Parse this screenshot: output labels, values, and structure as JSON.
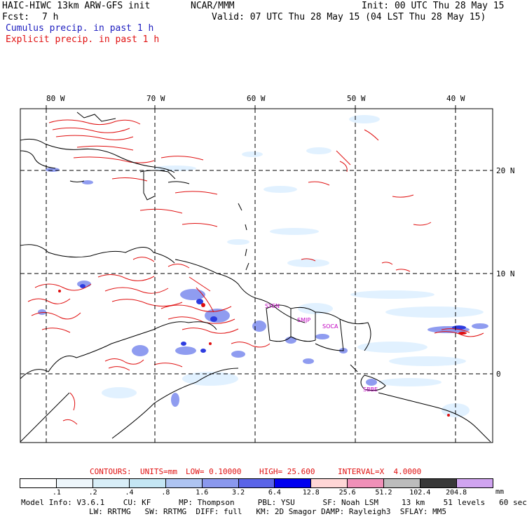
{
  "header": {
    "model": "HAIC-HIWC 13km ARW-GFS init",
    "org": "NCAR/MMM",
    "init": "Init: 00 UTC Thu 28 May 15",
    "fcst_label": "Fcst:",
    "fcst_value": "7 h",
    "valid": "Valid: 07 UTC Thu 28 May 15 (04 LST Thu 28 May 15)",
    "cumulus": "Cumulus precip. in past 1 h",
    "explicit": "Explicit precip. in past 1 h"
  },
  "map": {
    "lon_labels": [
      "80 W",
      "70 W",
      "60 W",
      "50 W",
      "40 W"
    ],
    "lat_labels": [
      "20 N",
      "10 N",
      "0"
    ],
    "cities": [
      "SYEN",
      "SMJP",
      "SOCA",
      "SBBE"
    ]
  },
  "contour_info": {
    "label": "CONTOURS:",
    "units": "UNITS=mm",
    "low": "LOW= 0.10000",
    "high": "HIGH= 25.600",
    "interval": "INTERVAL=X  4.0000"
  },
  "legend": {
    "colors": [
      "#ffffff",
      "#eef6fb",
      "#d8eef8",
      "#c4e6f4",
      "#aec4f2",
      "#8a98ee",
      "#5a64e8",
      "#0000f0",
      "#ffd6d6",
      "#f090b8",
      "#bcbcbc",
      "#383838",
      "#d0a4f0"
    ],
    "ticks": [
      ".1",
      ".2",
      ".4",
      ".8",
      "1.6",
      "3.2",
      "6.4",
      "12.8",
      "25.6",
      "51.2",
      "102.4",
      "204.8"
    ],
    "unit": "mm"
  },
  "footer": {
    "line1": "Model Info: V3.6.1    CU: KF      MP: Thompson     PBL: YSU      SF: Noah LSM     13 km    51 levels   60 sec",
    "line2": "LW: RRTMG   SW: RRTMG  DIFF: full   KM: 2D Smagor DAMP: Rayleigh3  SFLAY: MM5"
  }
}
